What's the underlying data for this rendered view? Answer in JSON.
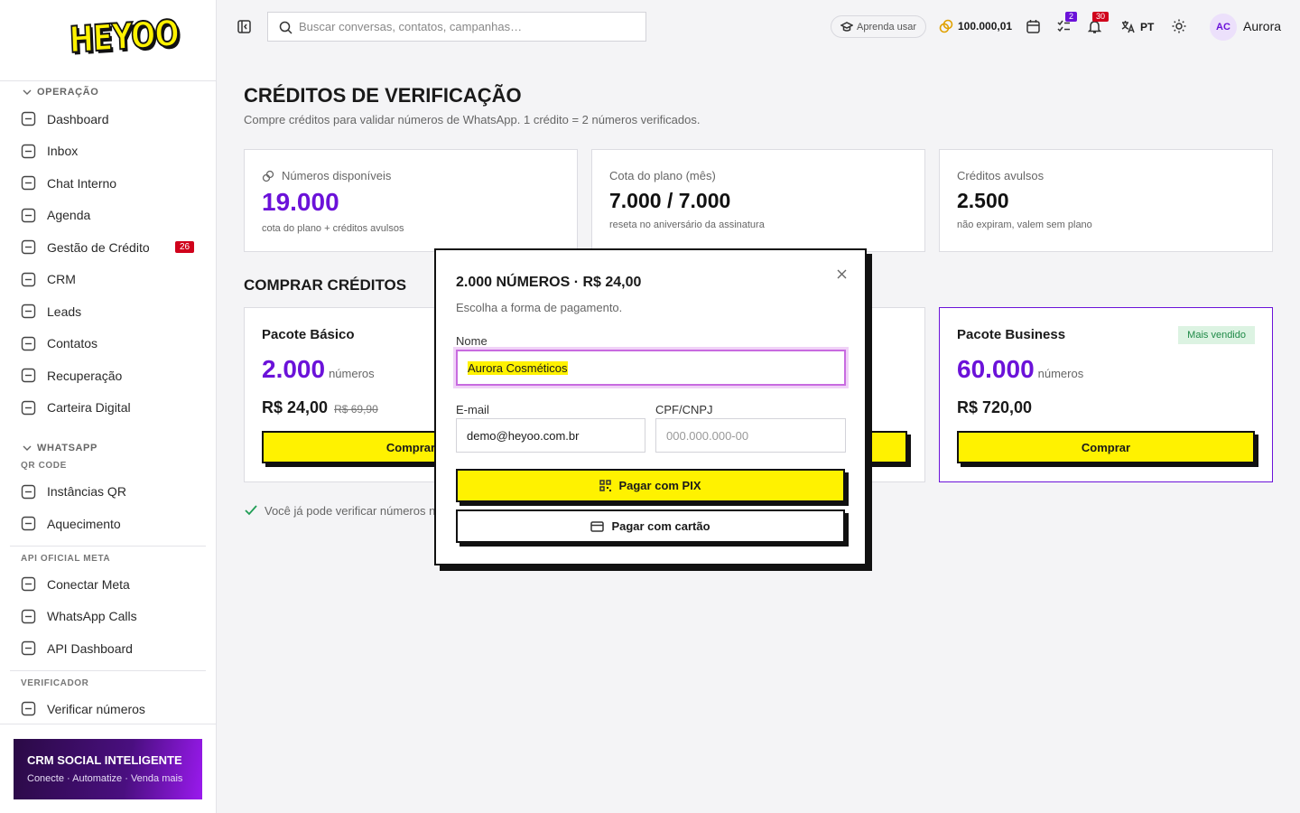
{
  "sidebar": {
    "logo": "HEYOO",
    "sections": [
      {
        "title": "OPERAÇÃO",
        "items": [
          {
            "label": "Dashboard"
          },
          {
            "label": "Inbox"
          },
          {
            "label": "Chat Interno"
          },
          {
            "label": "Agenda"
          },
          {
            "label": "Gestão de Crédito",
            "badge": "26"
          },
          {
            "label": "CRM"
          },
          {
            "label": "Leads"
          },
          {
            "label": "Contatos"
          },
          {
            "label": "Recuperação"
          },
          {
            "label": "Carteira Digital"
          }
        ]
      },
      {
        "title": "WHATSAPP",
        "groups": [
          {
            "title": "QR CODE",
            "items": [
              {
                "label": "Instâncias QR"
              },
              {
                "label": "Aquecimento"
              }
            ]
          },
          {
            "title": "API OFICIAL META",
            "items": [
              {
                "label": "Conectar Meta"
              },
              {
                "label": "WhatsApp Calls"
              },
              {
                "label": "API Dashboard"
              }
            ]
          },
          {
            "title": "VERIFICADOR",
            "items": [
              {
                "label": "Verificar números"
              }
            ]
          }
        ]
      }
    ],
    "promo": {
      "title": "CRM SOCIAL INTELIGENTE",
      "subtitle": "Conecte · Automatize · Venda mais"
    }
  },
  "topbar": {
    "search_placeholder": "Buscar conversas, contatos, campanhas…",
    "learn": "Aprenda usar",
    "balance": "100.000,01",
    "tasks_badge": "2",
    "notifications_badge": "30",
    "language": "PT",
    "user": {
      "initials": "AC",
      "name": "Aurora"
    }
  },
  "page": {
    "title": "CRÉDITOS DE VERIFICAÇÃO",
    "subtitle": "Compre créditos para validar números de WhatsApp. 1 crédito = 2 números verificados.",
    "stats": [
      {
        "label": "Números disponíveis",
        "value": "19.000",
        "note": "cota do plano + créditos avulsos"
      },
      {
        "label": "Cota do plano (mês)",
        "value": "7.000 / 7.000",
        "note": "reseta no aniversário da assinatura"
      },
      {
        "label": "Créditos avulsos",
        "value": "2.500",
        "note": "não expiram, valem sem plano"
      }
    ],
    "buy_title": "COMPRAR CRÉDITOS",
    "packages": [
      {
        "name": "Pacote Básico",
        "amount": "2.000",
        "unit": "números",
        "price": "R$ 24,00",
        "old_price": "R$ 69,90",
        "button": "Comprar"
      },
      {
        "name": "Pacote Business",
        "badge": "Mais vendido",
        "amount": "60.000",
        "unit": "números",
        "price": "R$ 720,00",
        "button": "Comprar"
      }
    ],
    "notice": "Você já pode verificar números na"
  },
  "modal": {
    "title": "2.000 NÚMEROS · R$ 24,00",
    "subtitle": "Escolha a forma de pagamento.",
    "fields": [
      {
        "label": "Nome",
        "value": "Aurora Cosméticos"
      },
      {
        "label": "E-mail",
        "value": "demo@heyoo.com.br"
      },
      {
        "label": "CPF/CNPJ",
        "placeholder": "000.000.000-00"
      }
    ],
    "pix_button": "Pagar com PIX",
    "card_button": "Pagar com cartão"
  }
}
